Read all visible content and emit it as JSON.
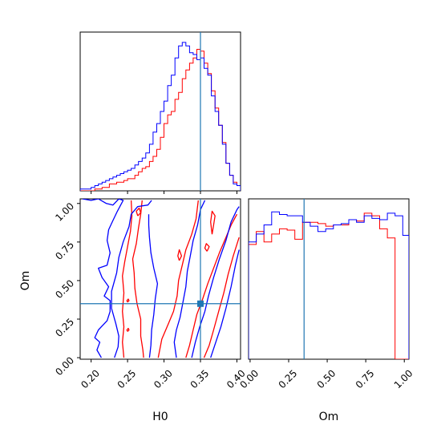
{
  "chart_data": {
    "type": "corner",
    "parameters": [
      "H0",
      "Om"
    ],
    "truths": {
      "H0": 0.35,
      "Om": 0.35
    },
    "colors": {
      "series_a": "#ff0000",
      "series_b": "#0000ff",
      "truth": "#1f77b4"
    },
    "axes": {
      "H0": {
        "label": "H0",
        "range": [
          0.185,
          0.405
        ],
        "ticks": [
          "0.20",
          "0.25",
          "0.30",
          "0.35",
          "0.40"
        ]
      },
      "Om": {
        "label": "Om",
        "range": [
          -0.01,
          1.03
        ],
        "ticks": [
          "0.00",
          "0.25",
          "0.50",
          "0.75",
          "1.00"
        ]
      }
    },
    "hist_H0": {
      "type": "step",
      "edges": [
        0.185,
        0.19,
        0.195,
        0.2,
        0.205,
        0.21,
        0.215,
        0.22,
        0.225,
        0.23,
        0.235,
        0.24,
        0.245,
        0.25,
        0.255,
        0.26,
        0.265,
        0.27,
        0.275,
        0.28,
        0.285,
        0.29,
        0.295,
        0.3,
        0.305,
        0.31,
        0.315,
        0.32,
        0.325,
        0.33,
        0.335,
        0.34,
        0.345,
        0.35,
        0.355,
        0.36,
        0.365,
        0.37,
        0.375,
        0.38,
        0.385,
        0.39,
        0.395,
        0.4,
        0.405
      ],
      "series": [
        {
          "name": "",
          "color": "red",
          "values": [
            0,
            0,
            0,
            0,
            0.01,
            0.01,
            0.02,
            0.02,
            0.04,
            0.04,
            0.05,
            0.05,
            0.06,
            0.07,
            0.07,
            0.09,
            0.11,
            0.13,
            0.14,
            0.17,
            0.2,
            0.24,
            0.31,
            0.39,
            0.44,
            0.46,
            0.53,
            0.57,
            0.65,
            0.7,
            0.74,
            0.77,
            0.82,
            0.81,
            0.74,
            0.68,
            0.58,
            0.48,
            0.38,
            0.28,
            0.16,
            0.09,
            0.05,
            0.03
          ]
        },
        {
          "name": "",
          "color": "blue",
          "values": [
            0.01,
            0.01,
            0.01,
            0.02,
            0.03,
            0.04,
            0.05,
            0.06,
            0.07,
            0.08,
            0.09,
            0.1,
            0.11,
            0.12,
            0.13,
            0.15,
            0.17,
            0.19,
            0.22,
            0.27,
            0.34,
            0.39,
            0.46,
            0.52,
            0.61,
            0.67,
            0.77,
            0.84,
            0.86,
            0.84,
            0.8,
            0.79,
            0.76,
            0.77,
            0.71,
            0.67,
            0.55,
            0.46,
            0.38,
            0.27,
            0.16,
            0.09,
            0.04,
            0.03
          ]
        }
      ]
    },
    "hist_Om": {
      "type": "step",
      "edges": [
        -0.01,
        0.04,
        0.09,
        0.14,
        0.19,
        0.24,
        0.29,
        0.34,
        0.39,
        0.44,
        0.49,
        0.54,
        0.59,
        0.64,
        0.69,
        0.74,
        0.79,
        0.84,
        0.89,
        0.94,
        0.99,
        1.03
      ],
      "series": [
        {
          "name": "",
          "color": "red",
          "values": [
            0.88,
            0.98,
            0.9,
            0.96,
            1.0,
            0.99,
            0.92,
            1.05,
            1.05,
            1.04,
            1.02,
            1.03,
            1.03,
            1.07,
            1.06,
            1.12,
            1.1,
            1.0,
            0.93,
            0.0,
            0.0
          ]
        },
        {
          "name": "",
          "color": "blue",
          "values": [
            0.9,
            0.96,
            1.03,
            1.13,
            1.11,
            1.1,
            1.1,
            1.05,
            1.02,
            0.98,
            1.0,
            1.03,
            1.04,
            1.07,
            1.05,
            1.1,
            1.08,
            1.07,
            1.12,
            1.1,
            0.95
          ]
        }
      ]
    },
    "contours": [
      {
        "color": "red",
        "paths": [
          [
            [
              0.245,
              0.0
            ],
            [
              0.243,
              0.1
            ],
            [
              0.245,
              0.2
            ],
            [
              0.243,
              0.3
            ],
            [
              0.245,
              0.42
            ],
            [
              0.243,
              0.53
            ],
            [
              0.246,
              0.62
            ],
            [
              0.25,
              0.72
            ],
            [
              0.254,
              0.82
            ],
            [
              0.256,
              0.92
            ],
            [
              0.255,
              1.02
            ]
          ],
          [
            [
              0.27,
              1.02
            ],
            [
              0.268,
              0.93
            ],
            [
              0.265,
              0.84
            ],
            [
              0.262,
              0.74
            ],
            [
              0.257,
              0.64
            ],
            [
              0.259,
              0.55
            ],
            [
              0.26,
              0.45
            ],
            [
              0.263,
              0.35
            ],
            [
              0.268,
              0.25
            ],
            [
              0.268,
              0.14
            ],
            [
              0.271,
              0.05
            ],
            [
              0.272,
              0.0
            ]
          ],
          [
            [
              0.292,
              0.0
            ],
            [
              0.297,
              0.12
            ],
            [
              0.306,
              0.22
            ],
            [
              0.313,
              0.3
            ],
            [
              0.318,
              0.4
            ],
            [
              0.32,
              0.5
            ],
            [
              0.325,
              0.6
            ],
            [
              0.33,
              0.7
            ],
            [
              0.338,
              0.8
            ],
            [
              0.344,
              0.9
            ],
            [
              0.347,
              1.02
            ]
          ],
          [
            [
              0.33,
              0.0
            ],
            [
              0.335,
              0.08
            ],
            [
              0.34,
              0.18
            ],
            [
              0.345,
              0.28
            ],
            [
              0.353,
              0.38
            ],
            [
              0.36,
              0.48
            ],
            [
              0.368,
              0.58
            ],
            [
              0.376,
              0.68
            ],
            [
              0.385,
              0.78
            ],
            [
              0.392,
              0.86
            ],
            [
              0.4,
              0.93
            ]
          ],
          [
            [
              0.355,
              0.0
            ],
            [
              0.362,
              0.08
            ],
            [
              0.368,
              0.18
            ],
            [
              0.375,
              0.3
            ],
            [
              0.382,
              0.42
            ],
            [
              0.388,
              0.54
            ],
            [
              0.395,
              0.66
            ],
            [
              0.403,
              0.78
            ]
          ],
          [
            [
              0.366,
              0.8
            ],
            [
              0.368,
              0.86
            ],
            [
              0.37,
              0.92
            ],
            [
              0.366,
              0.95
            ],
            [
              0.364,
              0.88
            ],
            [
              0.366,
              0.8
            ]
          ],
          [
            [
              0.321,
              0.63
            ],
            [
              0.324,
              0.66
            ],
            [
              0.321,
              0.7
            ],
            [
              0.319,
              0.66
            ],
            [
              0.321,
              0.63
            ]
          ],
          [
            [
              0.359,
              0.69
            ],
            [
              0.362,
              0.72
            ],
            [
              0.358,
              0.74
            ],
            [
              0.356,
              0.71
            ],
            [
              0.359,
              0.69
            ]
          ],
          [
            [
              0.25,
              0.36
            ],
            [
              0.252,
              0.37
            ],
            [
              0.251,
              0.38
            ],
            [
              0.249,
              0.37
            ],
            [
              0.25,
              0.36
            ]
          ],
          [
            [
              0.25,
              0.17
            ],
            [
              0.252,
              0.18
            ],
            [
              0.251,
              0.19
            ],
            [
              0.249,
              0.18
            ],
            [
              0.25,
              0.17
            ]
          ],
          [
            [
              0.264,
              0.92
            ],
            [
              0.268,
              0.94
            ],
            [
              0.266,
              0.97
            ],
            [
              0.262,
              0.95
            ],
            [
              0.264,
              0.92
            ]
          ]
        ]
      },
      {
        "color": "blue",
        "paths": [
          [
            [
              0.188,
              1.03
            ],
            [
              0.2,
              1.02
            ],
            [
              0.21,
              1.03
            ],
            [
              0.221,
              1.0
            ],
            [
              0.23,
              0.99
            ],
            [
              0.238,
              1.03
            ],
            [
              0.244,
              1.02
            ],
            [
              0.236,
              0.95
            ],
            [
              0.23,
              0.89
            ],
            [
              0.224,
              0.83
            ],
            [
              0.222,
              0.76
            ],
            [
              0.226,
              0.68
            ],
            [
              0.222,
              0.6
            ],
            [
              0.21,
              0.58
            ],
            [
              0.215,
              0.52
            ],
            [
              0.224,
              0.46
            ],
            [
              0.218,
              0.4
            ],
            [
              0.226,
              0.37
            ],
            [
              0.226,
              0.3
            ],
            [
              0.222,
              0.24
            ],
            [
              0.21,
              0.18
            ],
            [
              0.205,
              0.13
            ],
            [
              0.212,
              0.1
            ],
            [
              0.208,
              0.05
            ],
            [
              0.214,
              0.0
            ]
          ],
          [
            [
              0.232,
              0.0
            ],
            [
              0.237,
              0.07
            ],
            [
              0.238,
              0.14
            ],
            [
              0.234,
              0.22
            ],
            [
              0.228,
              0.32
            ],
            [
              0.228,
              0.43
            ],
            [
              0.235,
              0.55
            ],
            [
              0.238,
              0.65
            ],
            [
              0.244,
              0.75
            ],
            [
              0.252,
              0.85
            ],
            [
              0.255,
              0.93
            ],
            [
              0.264,
              0.98
            ],
            [
              0.278,
              0.99
            ],
            [
              0.283,
              1.02
            ]
          ],
          [
            [
              0.28,
              0.0
            ],
            [
              0.282,
              0.08
            ],
            [
              0.283,
              0.18
            ],
            [
              0.286,
              0.28
            ],
            [
              0.288,
              0.38
            ],
            [
              0.291,
              0.48
            ],
            [
              0.286,
              0.58
            ],
            [
              0.282,
              0.68
            ],
            [
              0.28,
              0.78
            ],
            [
              0.279,
              0.86
            ],
            [
              0.279,
              0.93
            ]
          ],
          [
            [
              0.317,
              0.0
            ],
            [
              0.314,
              0.1
            ],
            [
              0.317,
              0.18
            ],
            [
              0.322,
              0.26
            ],
            [
              0.326,
              0.36
            ],
            [
              0.33,
              0.46
            ],
            [
              0.332,
              0.56
            ],
            [
              0.336,
              0.66
            ],
            [
              0.34,
              0.76
            ],
            [
              0.346,
              0.86
            ],
            [
              0.35,
              0.96
            ],
            [
              0.356,
              1.02
            ]
          ],
          [
            [
              0.338,
              0.0
            ],
            [
              0.343,
              0.1
            ],
            [
              0.349,
              0.2
            ],
            [
              0.356,
              0.3
            ],
            [
              0.361,
              0.4
            ],
            [
              0.368,
              0.52
            ],
            [
              0.376,
              0.64
            ],
            [
              0.385,
              0.76
            ],
            [
              0.392,
              0.88
            ],
            [
              0.4,
              0.96
            ],
            [
              0.403,
              0.98
            ]
          ],
          [
            [
              0.364,
              0.0
            ],
            [
              0.371,
              0.1
            ],
            [
              0.378,
              0.2
            ],
            [
              0.385,
              0.32
            ],
            [
              0.392,
              0.46
            ],
            [
              0.398,
              0.6
            ],
            [
              0.403,
              0.7
            ]
          ]
        ]
      }
    ]
  }
}
